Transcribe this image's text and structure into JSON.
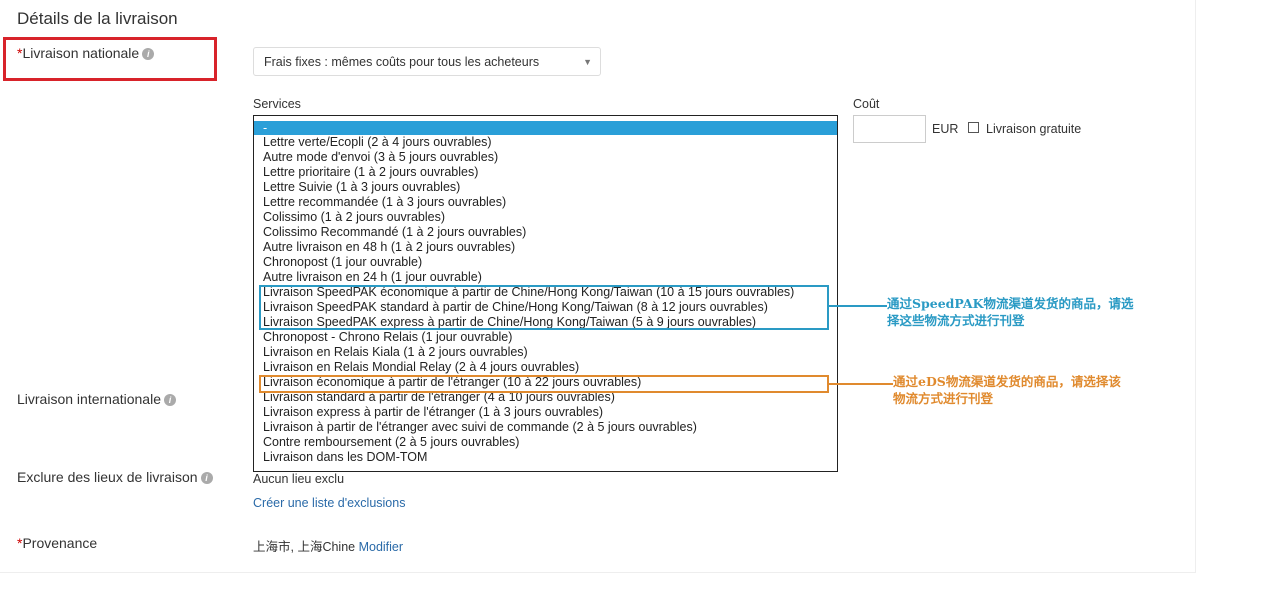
{
  "section_title": "Détails de la livraison",
  "domestic": {
    "label": "Livraison nationale",
    "required_mark": "*",
    "select_value": "Frais fixes : mêmes coûts pour tous les acheteurs"
  },
  "services": {
    "label": "Services",
    "selected_index": 0,
    "options": [
      "-",
      "Lettre verte/Ecopli (2 à 4 jours ouvrables)",
      "Autre mode d'envoi (3 à 5 jours ouvrables)",
      "Lettre prioritaire (1 à 2 jours ouvrables)",
      "Lettre Suivie (1 à 3 jours ouvrables)",
      "Lettre recommandée (1 à 3 jours ouvrables)",
      "Colissimo (1 à 2 jours ouvrables)",
      "Colissimo Recommandé (1 à 2 jours ouvrables)",
      "Autre livraison en 48 h (1 à 2 jours ouvrables)",
      "Chronopost (1 jour ouvrable)",
      "Autre livraison en 24 h (1 jour ouvrable)",
      "Livraison SpeedPAK économique à partir de Chine/Hong Kong/Taiwan (10 à 15 jours ouvrables)",
      "Livraison SpeedPAK standard à partir de Chine/Hong Kong/Taiwan (8 à 12 jours ouvrables)",
      "Livraison SpeedPAK express à partir de Chine/Hong Kong/Taiwan (5 à 9 jours ouvrables)",
      "Chronopost - Chrono Relais (1 jour ouvrable)",
      "Livraison en Relais Kiala (1 à 2 jours ouvrables)",
      "Livraison en Relais Mondial Relay (2 à 4 jours ouvrables)",
      "Livraison économique à partir de l'étranger (10 à 22 jours ouvrables)",
      "Livraison standard à partir de l'étranger (4 à 10 jours ouvrables)",
      "Livraison express à partir de l'étranger (1 à 3 jours ouvrables)",
      "Livraison à partir de l'étranger avec suivi de commande (2 à 5 jours ouvrables)",
      "Contre remboursement (2 à 5 jours ouvrables)",
      "Livraison dans les DOM-TOM"
    ]
  },
  "cost": {
    "label": "Coût",
    "value": "",
    "currency": "EUR",
    "free_shipping_label": "Livraison gratuite",
    "free_shipping_checked": false
  },
  "international": {
    "label": "Livraison internationale"
  },
  "exclusions": {
    "label": "Exclure des lieux de livraison",
    "value": "Aucun lieu exclu",
    "link": "Créer une liste d'exclusions"
  },
  "origin": {
    "label": "Provenance",
    "required_mark": "*",
    "value": "上海市, 上海Chine",
    "link": "Modifier"
  },
  "annotations": {
    "speedpak": {
      "text": "通过SpeedPAK物流渠道发货的商品，请选择这些物流方式进行刊登",
      "color": "#2a9ac4"
    },
    "eds": {
      "text": "通过eDS物流渠道发货的商品，请选择该物流方式进行刊登",
      "color": "#e08a2e"
    },
    "highlight_color": "#d8232a"
  }
}
